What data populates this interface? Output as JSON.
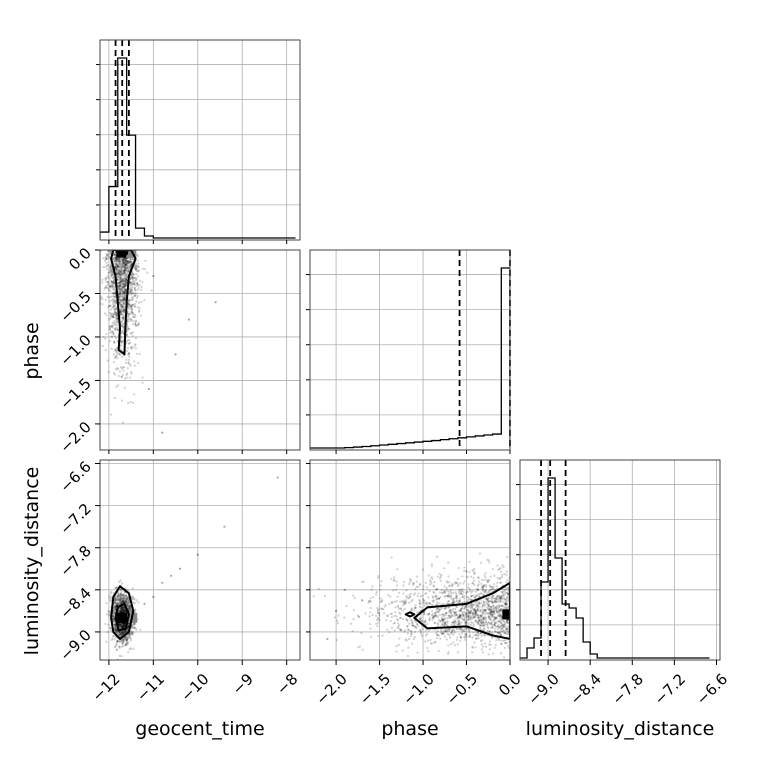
{
  "chart_data": {
    "type": "corner",
    "parameters": [
      "geocent_time",
      "phase",
      "luminosity_distance"
    ],
    "grid": true,
    "ranges": {
      "geocent_time": [
        -12.2,
        -7.7
      ],
      "phase": [
        -2.3,
        0.0
      ],
      "luminosity_distance": [
        -9.4,
        -6.55
      ]
    },
    "ticks": {
      "geocent_time": {
        "values": [
          -12,
          -11,
          -10,
          -9,
          -8
        ],
        "labels": [
          "−12",
          "−11",
          "−10",
          "−9",
          "−8"
        ]
      },
      "phase": {
        "values": [
          -2.0,
          -1.5,
          -1.0,
          -0.5,
          0.0
        ],
        "labels": [
          "−2.0",
          "−1.5",
          "−1.0",
          "−0.5",
          "0.0"
        ]
      },
      "luminosity_distance": {
        "values": [
          -9.0,
          -8.4,
          -7.8,
          -7.2,
          -6.6
        ],
        "labels": [
          "−9.0",
          "−8.4",
          "−7.8",
          "−7.2",
          "−6.6"
        ]
      }
    },
    "histograms": {
      "geocent_time": {
        "edges": [
          -12.2,
          -12.0,
          -11.8,
          -11.6,
          -11.4,
          -11.2,
          -11.0,
          -10.8,
          -10.6,
          -10.4,
          -10.2,
          -10.0,
          -9.8,
          -9.6,
          -9.4,
          -9.2,
          -9.0,
          -8.8,
          -8.6,
          -8.4,
          -8.2,
          -8.0,
          -7.8
        ],
        "counts": [
          0.03,
          0.26,
          0.91,
          0.52,
          0.05,
          0.01,
          0,
          0,
          0,
          0,
          0,
          0,
          0,
          0,
          0,
          0,
          0,
          0,
          0,
          0,
          0,
          0
        ],
        "quantiles": [
          -11.85,
          -11.7,
          -11.55
        ]
      },
      "phase": {
        "edges": [
          -2.3,
          -2.2,
          -2.1,
          -2.0,
          -1.9,
          -1.8,
          -1.7,
          -1.6,
          -1.5,
          -1.4,
          -1.3,
          -1.2,
          -1.1,
          -1.0,
          -0.9,
          -0.8,
          -0.7,
          -0.6,
          -0.5,
          -0.4,
          -0.3,
          -0.2,
          -0.1,
          0.0
        ],
        "counts": [
          0,
          0,
          0,
          0,
          0.002,
          0.005,
          0.008,
          0.012,
          0.016,
          0.02,
          0.024,
          0.028,
          0.032,
          0.036,
          0.04,
          0.045,
          0.05,
          0.055,
          0.06,
          0.065,
          0.07,
          0.075,
          0.97
        ],
        "quantiles": [
          -0.58,
          0.0
        ]
      },
      "luminosity_distance": {
        "edges": [
          -9.4,
          -9.3,
          -9.2,
          -9.1,
          -9.0,
          -8.9,
          -8.8,
          -8.7,
          -8.6,
          -8.5,
          -8.4,
          -8.3,
          -8.2,
          -8.1,
          -8.0,
          -7.9,
          -7.8,
          -7.7,
          -7.6,
          -7.5,
          -7.4,
          -7.3,
          -7.2,
          -7.1,
          -7.0,
          -6.9,
          -6.8,
          -6.7
        ],
        "counts": [
          0,
          0.05,
          0.1,
          0.38,
          0.9,
          0.5,
          0.27,
          0.25,
          0.2,
          0.08,
          0.02,
          0,
          0,
          0,
          0,
          0,
          0,
          0,
          0,
          0,
          0,
          0,
          0,
          0,
          0,
          0,
          0
        ],
        "quantiles": [
          -9.1,
          -8.97,
          -8.75
        ]
      }
    },
    "pairs": [
      {
        "x": "geocent_time",
        "y": "phase",
        "samples": {
          "x_mean": -11.7,
          "x_sd": 0.17,
          "y_mean": -0.15,
          "y_sd": 0.6,
          "n": 1400,
          "tail_points": [
            [
              -11.0,
              -0.3
            ],
            [
              -10.5,
              -1.2
            ],
            [
              -10.2,
              -0.8
            ],
            [
              -9.6,
              -0.6
            ],
            [
              -10.8,
              -2.1
            ],
            [
              -11.1,
              -1.6
            ]
          ]
        },
        "contours": [
          [
            [
              -11.9,
              0.0
            ],
            [
              -11.95,
              -0.1
            ],
            [
              -11.85,
              -0.3
            ],
            [
              -11.8,
              -0.6
            ],
            [
              -11.75,
              -0.9
            ],
            [
              -11.78,
              -1.15
            ],
            [
              -11.65,
              -1.2
            ],
            [
              -11.63,
              -0.9
            ],
            [
              -11.6,
              -0.6
            ],
            [
              -11.55,
              -0.3
            ],
            [
              -11.4,
              -0.1
            ],
            [
              -11.5,
              0.0
            ]
          ],
          [
            [
              -11.82,
              0.0
            ],
            [
              -11.8,
              -0.05
            ],
            [
              -11.6,
              -0.05
            ],
            [
              -11.58,
              0.0
            ]
          ]
        ],
        "peak": [
          -11.72,
          -0.03
        ]
      },
      {
        "x": "geocent_time",
        "y": "luminosity_distance",
        "samples": {
          "x_mean": -11.7,
          "x_sd": 0.12,
          "y_mean": -8.8,
          "y_sd": 0.18,
          "n": 1400,
          "tail_points": [
            [
              -11.2,
              -8.6
            ],
            [
              -10.8,
              -8.3
            ],
            [
              -10.4,
              -8.1
            ],
            [
              -10.0,
              -7.9
            ],
            [
              -9.4,
              -7.5
            ],
            [
              -8.2,
              -6.8
            ],
            [
              -10.6,
              -8.2
            ],
            [
              -11.0,
              -8.5
            ]
          ]
        },
        "contours": [
          [
            [
              -11.95,
              -8.8
            ],
            [
              -11.9,
              -8.5
            ],
            [
              -11.75,
              -8.35
            ],
            [
              -11.55,
              -8.45
            ],
            [
              -11.45,
              -8.7
            ],
            [
              -11.55,
              -9.0
            ],
            [
              -11.75,
              -9.1
            ],
            [
              -11.9,
              -9.0
            ]
          ],
          [
            [
              -11.85,
              -8.8
            ],
            [
              -11.8,
              -8.65
            ],
            [
              -11.65,
              -8.6
            ],
            [
              -11.55,
              -8.75
            ],
            [
              -11.62,
              -8.95
            ],
            [
              -11.78,
              -8.98
            ]
          ],
          [
            [
              -11.76,
              -8.82
            ],
            [
              -11.7,
              -8.72
            ],
            [
              -11.62,
              -8.78
            ],
            [
              -11.66,
              -8.88
            ]
          ]
        ],
        "peak": [
          -11.7,
          -8.8
        ]
      },
      {
        "x": "phase",
        "y": "luminosity_distance",
        "samples": {
          "x_mean": -0.25,
          "x_sd": 0.6,
          "y_mean": -8.7,
          "y_sd": 0.25,
          "n": 1600,
          "tail_points": [
            [
              -2.0,
              -8.7
            ],
            [
              -1.9,
              -8.4
            ],
            [
              -2.1,
              -9.1
            ],
            [
              -1.7,
              -8.55
            ]
          ]
        },
        "contours": [
          [
            [
              0.0,
              -8.3
            ],
            [
              -0.2,
              -8.45
            ],
            [
              -0.5,
              -8.6
            ],
            [
              -0.95,
              -8.65
            ],
            [
              -1.1,
              -8.8
            ],
            [
              -0.95,
              -8.95
            ],
            [
              -0.5,
              -8.92
            ],
            [
              -0.2,
              -9.05
            ],
            [
              0.0,
              -9.1
            ]
          ],
          [
            [
              -1.2,
              -8.75
            ],
            [
              -1.15,
              -8.72
            ],
            [
              -1.1,
              -8.75
            ],
            [
              -1.15,
              -8.78
            ]
          ]
        ],
        "peak": [
          -0.03,
          -8.75
        ]
      }
    ]
  }
}
